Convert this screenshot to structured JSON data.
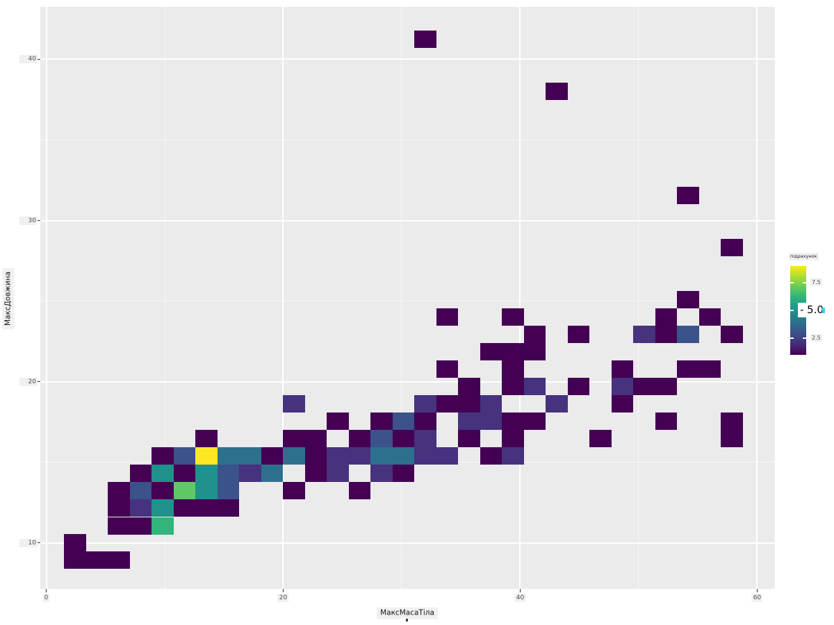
{
  "figure": {
    "background": "#ffffff",
    "panel_background": "#ebebeb",
    "grid_color": "#ffffff",
    "tick_label_color": "#4d4d4d",
    "label_box_background": "#f0f0f0"
  },
  "chart_data": {
    "type": "heatmap",
    "subtype": "bin2d-viridis",
    "title": "",
    "xlabel": "МаксМасаТіла",
    "ylabel": "МаксДовжина",
    "legend_title": "підрахунок",
    "xlim": [
      -0.5,
      61.5
    ],
    "ylim": [
      7.15,
      43.25
    ],
    "x_major_ticks": [
      0,
      20,
      40,
      60
    ],
    "x_minor_ticks": [
      10,
      30,
      50
    ],
    "y_major_ticks": [
      10,
      20,
      30,
      40
    ],
    "y_minor_ticks": [
      15,
      25,
      35
    ],
    "grid": "on",
    "legend_position": "right",
    "bin_width": 1.85,
    "bin_height": 1.078,
    "count_scale": {
      "min": 1,
      "max": 9
    },
    "count_colors": {
      "1": "#440154",
      "2": "#46327e",
      "3": "#3b528b",
      "4": "#2d708e",
      "5": "#21918c",
      "6": "#31b57b",
      "7": "#5ec962",
      "8": "#aadc32",
      "9": "#fde725"
    },
    "viridis_stops": [
      "#440154",
      "#482878",
      "#3e4a89",
      "#31688e",
      "#26828e",
      "#1f9e89",
      "#35b779",
      "#6ece58",
      "#b5de2b",
      "#fde725"
    ],
    "bins": [
      [
        32.0,
        41.25,
        1
      ],
      [
        43.08,
        38.01,
        1
      ],
      [
        54.17,
        31.55,
        1
      ],
      [
        57.87,
        28.31,
        1
      ],
      [
        54.17,
        25.08,
        1
      ],
      [
        33.84,
        24.0,
        1
      ],
      [
        39.39,
        24.0,
        1
      ],
      [
        52.32,
        24.0,
        1
      ],
      [
        56.02,
        24.0,
        1
      ],
      [
        41.24,
        22.93,
        1
      ],
      [
        44.93,
        22.93,
        1
      ],
      [
        50.48,
        22.93,
        2
      ],
      [
        52.32,
        22.93,
        1
      ],
      [
        54.17,
        22.93,
        3
      ],
      [
        57.87,
        22.93,
        1
      ],
      [
        37.54,
        21.85,
        1
      ],
      [
        39.39,
        21.85,
        1
      ],
      [
        41.24,
        21.85,
        1
      ],
      [
        33.84,
        20.77,
        1
      ],
      [
        39.39,
        20.77,
        1
      ],
      [
        48.63,
        20.77,
        1
      ],
      [
        54.17,
        20.77,
        1
      ],
      [
        56.02,
        20.77,
        1
      ],
      [
        35.69,
        19.69,
        1
      ],
      [
        39.39,
        19.69,
        1
      ],
      [
        41.24,
        19.69,
        2
      ],
      [
        44.93,
        19.69,
        1
      ],
      [
        48.63,
        19.69,
        2
      ],
      [
        50.48,
        19.69,
        1
      ],
      [
        52.32,
        19.69,
        1
      ],
      [
        20.91,
        18.62,
        2
      ],
      [
        32.0,
        18.62,
        2
      ],
      [
        33.84,
        18.62,
        1
      ],
      [
        35.69,
        18.62,
        1
      ],
      [
        37.54,
        18.62,
        2
      ],
      [
        43.08,
        18.62,
        2
      ],
      [
        48.63,
        18.62,
        1
      ],
      [
        24.6,
        17.54,
        1
      ],
      [
        28.3,
        17.54,
        1
      ],
      [
        30.15,
        17.54,
        3
      ],
      [
        32.0,
        17.54,
        1
      ],
      [
        35.69,
        17.54,
        2
      ],
      [
        37.54,
        17.54,
        2
      ],
      [
        39.39,
        17.54,
        1
      ],
      [
        41.24,
        17.54,
        1
      ],
      [
        52.32,
        17.54,
        1
      ],
      [
        57.87,
        17.54,
        1
      ],
      [
        13.51,
        16.46,
        1
      ],
      [
        20.91,
        16.46,
        1
      ],
      [
        22.75,
        16.46,
        1
      ],
      [
        26.45,
        16.46,
        1
      ],
      [
        28.3,
        16.46,
        3
      ],
      [
        30.15,
        16.46,
        1
      ],
      [
        32.0,
        16.46,
        2
      ],
      [
        35.69,
        16.46,
        1
      ],
      [
        39.39,
        16.46,
        1
      ],
      [
        46.78,
        16.46,
        1
      ],
      [
        57.87,
        16.46,
        1
      ],
      [
        9.82,
        15.38,
        1
      ],
      [
        11.66,
        15.38,
        3
      ],
      [
        13.51,
        15.38,
        9
      ],
      [
        15.36,
        15.38,
        4
      ],
      [
        17.21,
        15.38,
        4
      ],
      [
        19.06,
        15.38,
        1
      ],
      [
        20.91,
        15.38,
        4
      ],
      [
        22.75,
        15.38,
        1
      ],
      [
        24.6,
        15.38,
        2
      ],
      [
        26.45,
        15.38,
        2
      ],
      [
        28.3,
        15.38,
        4
      ],
      [
        30.15,
        15.38,
        4
      ],
      [
        32.0,
        15.38,
        2
      ],
      [
        33.84,
        15.38,
        2
      ],
      [
        37.54,
        15.38,
        1
      ],
      [
        39.39,
        15.38,
        2
      ],
      [
        7.97,
        14.31,
        1
      ],
      [
        9.82,
        14.31,
        5
      ],
      [
        11.66,
        14.31,
        1
      ],
      [
        13.51,
        14.31,
        5
      ],
      [
        15.36,
        14.31,
        3
      ],
      [
        17.21,
        14.31,
        2
      ],
      [
        19.06,
        14.31,
        4
      ],
      [
        22.75,
        14.31,
        1
      ],
      [
        24.6,
        14.31,
        2
      ],
      [
        28.3,
        14.31,
        2
      ],
      [
        30.15,
        14.31,
        1
      ],
      [
        6.12,
        13.23,
        1
      ],
      [
        7.97,
        13.23,
        3
      ],
      [
        9.82,
        13.23,
        1
      ],
      [
        11.66,
        13.23,
        7
      ],
      [
        13.51,
        13.23,
        5
      ],
      [
        15.36,
        13.23,
        3
      ],
      [
        20.91,
        13.23,
        1
      ],
      [
        26.45,
        13.23,
        1
      ],
      [
        6.12,
        12.15,
        1
      ],
      [
        7.97,
        12.15,
        2
      ],
      [
        9.82,
        12.15,
        5
      ],
      [
        11.66,
        12.15,
        1
      ],
      [
        13.51,
        12.15,
        1
      ],
      [
        15.36,
        12.15,
        1
      ],
      [
        6.12,
        11.07,
        1
      ],
      [
        7.97,
        11.07,
        1
      ],
      [
        9.82,
        11.07,
        6
      ],
      [
        2.42,
        10.0,
        1
      ],
      [
        2.42,
        8.92,
        1
      ],
      [
        4.27,
        8.92,
        1
      ],
      [
        6.12,
        8.92,
        1
      ]
    ]
  },
  "legend": {
    "title": "підрахунок",
    "ticks": [
      {
        "value": 7.5,
        "label": "7.5",
        "style": "small"
      },
      {
        "value": 5.0,
        "label": "- 5.0",
        "style": "big"
      },
      {
        "value": 2.5,
        "label": "2.5",
        "style": "small"
      }
    ],
    "cursor_color": "#3bd6e8"
  }
}
